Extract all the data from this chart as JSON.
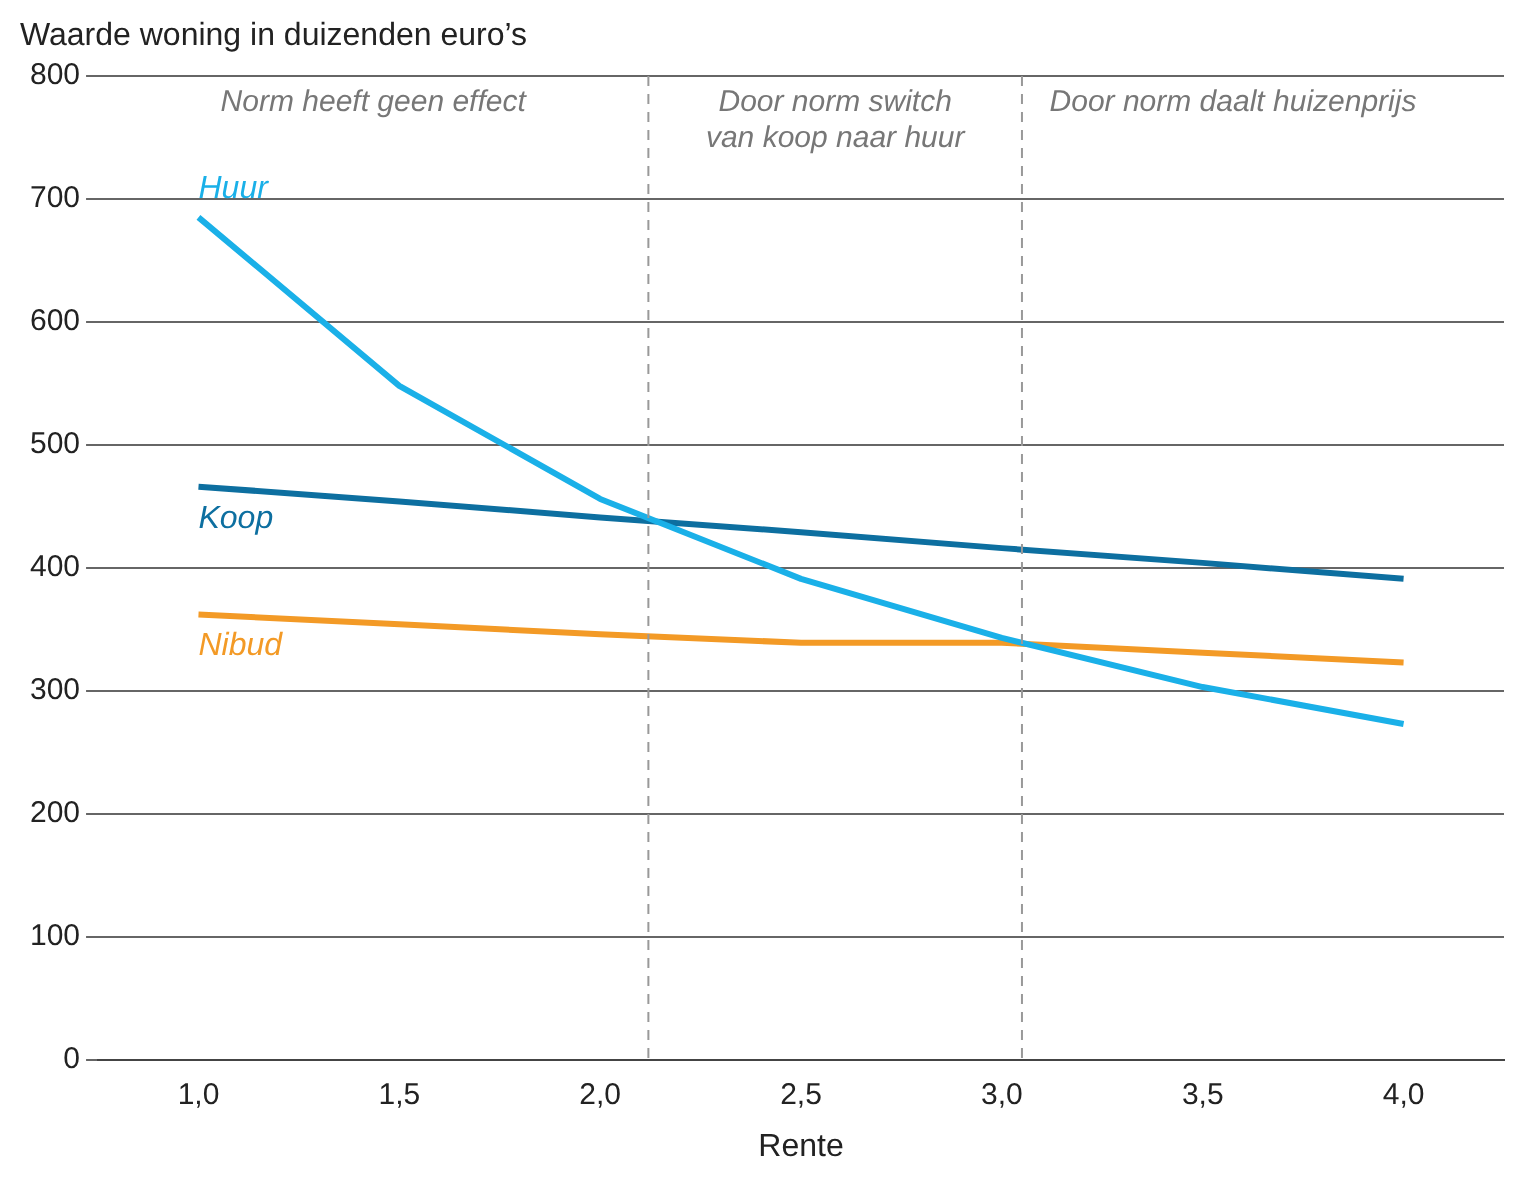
{
  "chart_data": {
    "type": "line",
    "ylabel": "Waarde woning in duizenden euro’s",
    "xlabel": "Rente",
    "x": [
      1,
      1.5,
      2,
      2.5,
      3,
      3.5,
      4
    ],
    "series": [
      {
        "name": "Huur",
        "color": "#1ab0e8",
        "values": [
          685,
          548,
          456,
          391,
          343,
          303,
          273
        ]
      },
      {
        "name": "Koop",
        "color": "#0d6fa0",
        "values": [
          466,
          454,
          441,
          429,
          416,
          404,
          391
        ]
      },
      {
        "name": "Nibud",
        "color": "#f39a26",
        "values": [
          362,
          354,
          346,
          339,
          339,
          331,
          323
        ]
      }
    ],
    "xlim": [
      0.75,
      4.25
    ],
    "xticks": [
      {
        "value": 1,
        "label": "1,0"
      },
      {
        "value": 1.5,
        "label": "1,5"
      },
      {
        "value": 2,
        "label": "2,0"
      },
      {
        "value": 2.5,
        "label": "2,5"
      },
      {
        "value": 3,
        "label": "3,0"
      },
      {
        "value": 3.5,
        "label": "3,5"
      },
      {
        "value": 4,
        "label": "4,0"
      }
    ],
    "ylim": [
      0,
      800
    ],
    "yticks": [
      0,
      100,
      200,
      300,
      400,
      500,
      600,
      700,
      800
    ],
    "grid": "y",
    "legend": false,
    "marker": "none",
    "line_style": "solid",
    "ref_lines": [
      {
        "axis": "x",
        "value": 2.12,
        "color": "#999999",
        "line_style": "dashed"
      },
      {
        "axis": "x",
        "value": 3.05,
        "color": "#999999",
        "line_style": "dashed"
      }
    ],
    "annotations": [
      "Norm heeft geen effect",
      "Door norm switch\nvan koop naar huur",
      "Door norm daalt huizenprijs"
    ]
  }
}
